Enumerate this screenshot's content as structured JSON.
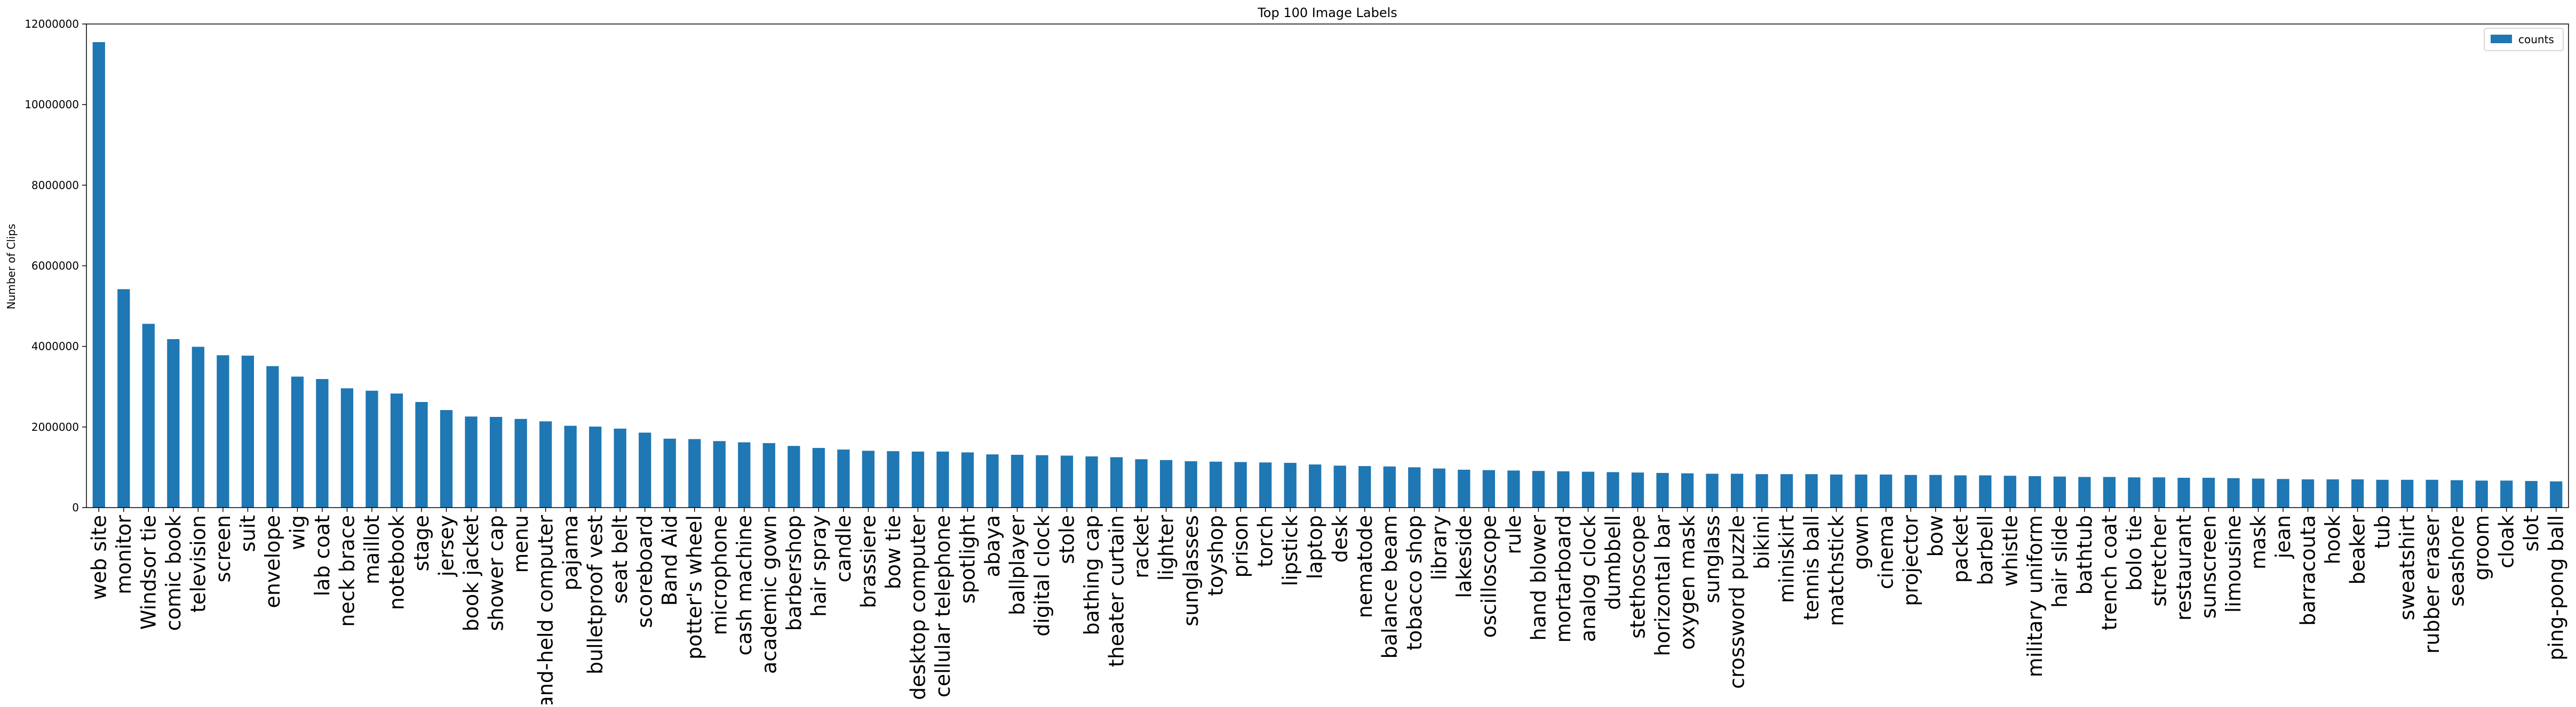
{
  "chart_data": {
    "type": "bar",
    "title": "Top 100 Image Labels",
    "xlabel": "",
    "ylabel": "Number of Clips",
    "ylim": [
      0,
      12000000
    ],
    "yticks": [
      0,
      2000000,
      4000000,
      6000000,
      8000000,
      10000000,
      12000000
    ],
    "ytick_labels": [
      "0",
      "2000000",
      "4000000",
      "6000000",
      "8000000",
      "10000000",
      "12000000"
    ],
    "grid": false,
    "legend_position": "top-right",
    "categories": [
      "web site",
      "monitor",
      "Windsor tie",
      "comic book",
      "television",
      "screen",
      "suit",
      "envelope",
      "wig",
      "lab coat",
      "neck brace",
      "maillot",
      "notebook",
      "stage",
      "jersey",
      "book jacket",
      "shower cap",
      "menu",
      "hand-held computer",
      "pajama",
      "bulletproof vest",
      "seat belt",
      "scoreboard",
      "Band Aid",
      "potter's wheel",
      "microphone",
      "cash machine",
      "academic gown",
      "barbershop",
      "hair spray",
      "candle",
      "brassiere",
      "bow tie",
      "desktop computer",
      "cellular telephone",
      "spotlight",
      "abaya",
      "ballplayer",
      "digital clock",
      "stole",
      "bathing cap",
      "theater curtain",
      "racket",
      "lighter",
      "sunglasses",
      "toyshop",
      "prison",
      "torch",
      "lipstick",
      "laptop",
      "desk",
      "nematode",
      "balance beam",
      "tobacco shop",
      "library",
      "lakeside",
      "oscilloscope",
      "rule",
      "hand blower",
      "mortarboard",
      "analog clock",
      "dumbbell",
      "stethoscope",
      "horizontal bar",
      "oxygen mask",
      "sunglass",
      "crossword puzzle",
      "bikini",
      "miniskirt",
      "tennis ball",
      "matchstick",
      "gown",
      "cinema",
      "projector",
      "bow",
      "packet",
      "barbell",
      "whistle",
      "military uniform",
      "hair slide",
      "bathtub",
      "trench coat",
      "bolo tie",
      "stretcher",
      "restaurant",
      "sunscreen",
      "limousine",
      "mask",
      "jean",
      "barracouta",
      "hook",
      "beaker",
      "tub",
      "sweatshirt",
      "rubber eraser",
      "seashore",
      "groom",
      "cloak",
      "slot",
      "ping-pong ball"
    ],
    "series": [
      {
        "name": "counts",
        "color": "#1f77b4",
        "values": [
          11550000,
          5420000,
          4560000,
          4180000,
          3990000,
          3780000,
          3770000,
          3510000,
          3250000,
          3190000,
          2960000,
          2900000,
          2830000,
          2620000,
          2420000,
          2260000,
          2250000,
          2200000,
          2140000,
          2030000,
          2010000,
          1960000,
          1860000,
          1710000,
          1700000,
          1650000,
          1620000,
          1600000,
          1530000,
          1480000,
          1440000,
          1410000,
          1400000,
          1390000,
          1390000,
          1370000,
          1320000,
          1310000,
          1300000,
          1290000,
          1270000,
          1250000,
          1200000,
          1180000,
          1150000,
          1140000,
          1130000,
          1120000,
          1110000,
          1070000,
          1040000,
          1030000,
          1020000,
          1000000,
          970000,
          940000,
          930000,
          920000,
          910000,
          900000,
          890000,
          880000,
          870000,
          860000,
          850000,
          840000,
          840000,
          830000,
          830000,
          830000,
          820000,
          820000,
          820000,
          810000,
          810000,
          800000,
          800000,
          790000,
          780000,
          770000,
          760000,
          760000,
          750000,
          750000,
          740000,
          740000,
          730000,
          720000,
          710000,
          700000,
          700000,
          700000,
          690000,
          690000,
          690000,
          680000,
          670000,
          670000,
          660000,
          650000
        ]
      }
    ]
  }
}
